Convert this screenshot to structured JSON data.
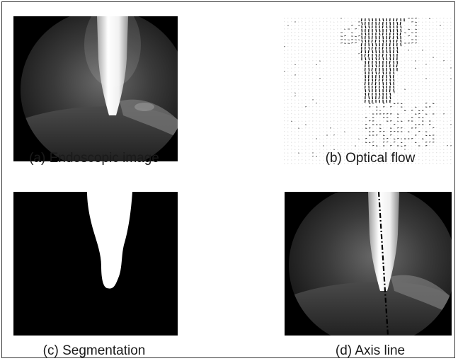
{
  "figure": {
    "panels": [
      {
        "id": "a",
        "caption": "(a) Endoscopic image"
      },
      {
        "id": "b",
        "caption": "(b) Optical flow"
      },
      {
        "id": "c",
        "caption": "(c) Segmentation"
      },
      {
        "id": "d",
        "caption": "(d) Axis line"
      }
    ]
  }
}
